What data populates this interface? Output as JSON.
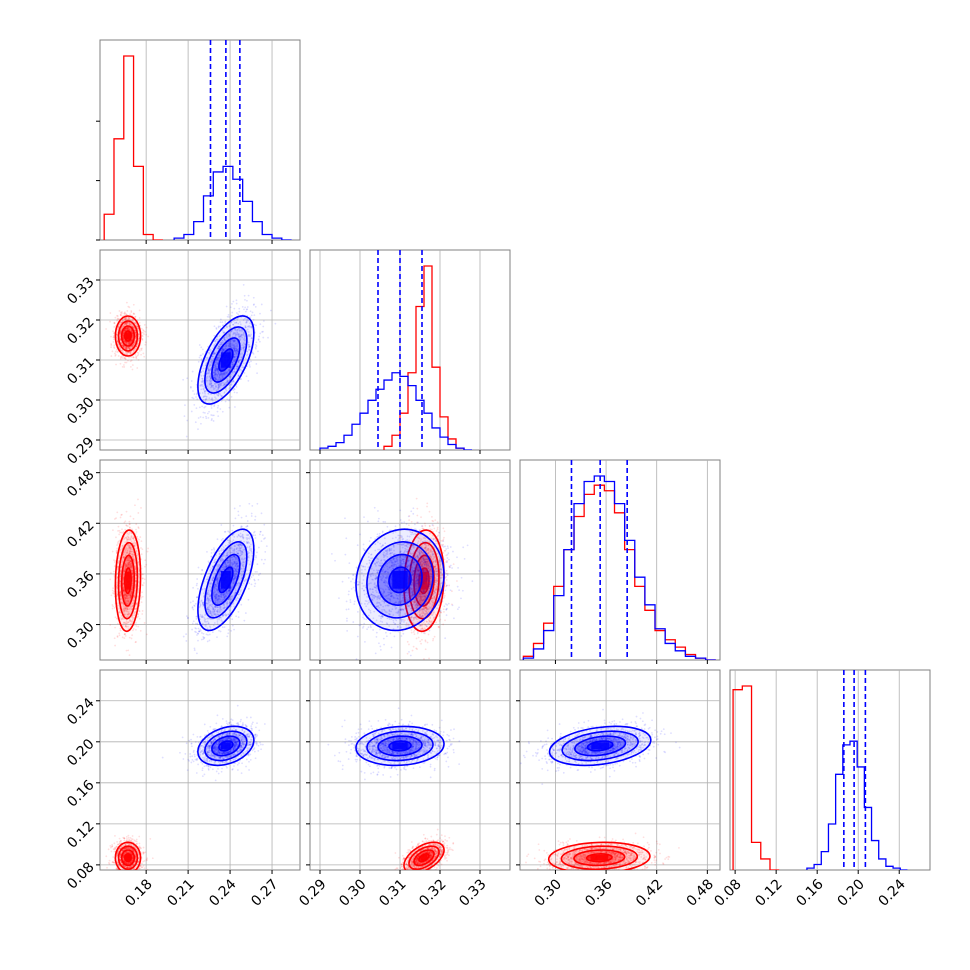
{
  "chart_data": {
    "type": "corner",
    "series_colors": {
      "red": "#ff0000",
      "blue": "#0000ff"
    },
    "grid": true,
    "parameters": [
      {
        "range": [
          0.147,
          0.29
        ],
        "ticks": [
          "0.18",
          "0.21",
          "0.24",
          "0.27"
        ]
      },
      {
        "range": [
          0.2875,
          0.3375
        ],
        "ticks": [
          "0.29",
          "0.30",
          "0.31",
          "0.32",
          "0.33"
        ]
      },
      {
        "range": [
          0.258,
          0.495
        ],
        "ticks": [
          "0.30",
          "0.36",
          "0.42",
          "0.48"
        ]
      },
      {
        "range": [
          0.075,
          0.27
        ],
        "ticks": [
          "0.08",
          "0.12",
          "0.16",
          "0.20",
          "0.24"
        ]
      }
    ],
    "histograms": [
      {
        "param": 0,
        "quantiles_blue": [
          0.226,
          0.237,
          0.247
        ],
        "red": {
          "edges": [
            0.15,
            0.157,
            0.164,
            0.171,
            0.178,
            0.185,
            0.192
          ],
          "counts": [
            14,
            55,
            100,
            40,
            3,
            0
          ]
        },
        "blue": {
          "edges": [
            0.2,
            0.207,
            0.214,
            0.221,
            0.228,
            0.235,
            0.242,
            0.249,
            0.256,
            0.263,
            0.27,
            0.277,
            0.284
          ],
          "counts": [
            1,
            3,
            10,
            24,
            37,
            40,
            33,
            21,
            10,
            3,
            1,
            0
          ]
        }
      },
      {
        "param": 1,
        "quantiles_blue": [
          0.3045,
          0.31,
          0.3155
        ],
        "red": {
          "edges": [
            0.306,
            0.308,
            0.31,
            0.312,
            0.314,
            0.316,
            0.318,
            0.32,
            0.322,
            0.324,
            0.326
          ],
          "counts": [
            2,
            8,
            20,
            42,
            78,
            100,
            45,
            18,
            6,
            1
          ]
        },
        "blue": {
          "edges": [
            0.29,
            0.292,
            0.294,
            0.296,
            0.298,
            0.3,
            0.302,
            0.304,
            0.306,
            0.308,
            0.31,
            0.312,
            0.314,
            0.316,
            0.318,
            0.32,
            0.322,
            0.324,
            0.326,
            0.328
          ],
          "counts": [
            1,
            2,
            4,
            8,
            14,
            20,
            27,
            33,
            38,
            42,
            40,
            35,
            27,
            20,
            12,
            7,
            3,
            1,
            0
          ]
        }
      },
      {
        "param": 2,
        "quantiles_blue": [
          0.319,
          0.353,
          0.385
        ],
        "red": {
          "edges": [
            0.262,
            0.274,
            0.286,
            0.298,
            0.31,
            0.322,
            0.334,
            0.346,
            0.358,
            0.37,
            0.382,
            0.394,
            0.406,
            0.418,
            0.43,
            0.442,
            0.454,
            0.466,
            0.478,
            0.49
          ],
          "counts": [
            2,
            9,
            20,
            40,
            60,
            78,
            90,
            95,
            92,
            80,
            60,
            40,
            27,
            16,
            11,
            7,
            3,
            1,
            0
          ]
        },
        "blue": {
          "edges": [
            0.262,
            0.274,
            0.286,
            0.298,
            0.31,
            0.322,
            0.334,
            0.346,
            0.358,
            0.37,
            0.382,
            0.394,
            0.406,
            0.418,
            0.43,
            0.442,
            0.454,
            0.466,
            0.478,
            0.49
          ],
          "counts": [
            1,
            6,
            16,
            35,
            60,
            85,
            97,
            100,
            97,
            85,
            65,
            45,
            30,
            17,
            9,
            5,
            2,
            1,
            0
          ]
        }
      },
      {
        "param": 3,
        "quantiles_blue": [
          0.186,
          0.196,
          0.207
        ],
        "red": {
          "edges": [
            0.078,
            0.087,
            0.096,
            0.105,
            0.114,
            0.123
          ],
          "counts": [
            98,
            100,
            15,
            6,
            0
          ]
        },
        "blue": {
          "edges": [
            0.15,
            0.157,
            0.164,
            0.171,
            0.178,
            0.185,
            0.192,
            0.199,
            0.206,
            0.213,
            0.22,
            0.227,
            0.234,
            0.241,
            0.248
          ],
          "counts": [
            1,
            3,
            10,
            25,
            52,
            68,
            70,
            56,
            34,
            16,
            6,
            2,
            1,
            0
          ]
        }
      }
    ],
    "scatter_panels": [
      {
        "xparam": 0,
        "yparam": 1,
        "red": {
          "mean": [
            0.167,
            0.316
          ],
          "sd": [
            0.0045,
            0.0025
          ],
          "rho": 0.0
        },
        "blue": {
          "mean": [
            0.237,
            0.31
          ],
          "sd": [
            0.01,
            0.0055
          ],
          "rho": 0.6
        }
      },
      {
        "xparam": 0,
        "yparam": 2,
        "red": {
          "mean": [
            0.167,
            0.352
          ],
          "sd": [
            0.0045,
            0.03
          ],
          "rho": 0.1
        },
        "blue": {
          "mean": [
            0.237,
            0.353
          ],
          "sd": [
            0.01,
            0.03
          ],
          "rho": 0.6
        }
      },
      {
        "xparam": 1,
        "yparam": 2,
        "red": {
          "mean": [
            0.316,
            0.352
          ],
          "sd": [
            0.0025,
            0.03
          ],
          "rho": 0.1
        },
        "blue": {
          "mean": [
            0.31,
            0.353
          ],
          "sd": [
            0.0055,
            0.03
          ],
          "rho": 0.1
        }
      },
      {
        "xparam": 0,
        "yparam": 3,
        "red": {
          "mean": [
            0.167,
            0.087
          ],
          "sd": [
            0.0045,
            0.0075
          ],
          "rho": 0.0
        },
        "blue": {
          "mean": [
            0.237,
            0.196
          ],
          "sd": [
            0.01,
            0.0095
          ],
          "rho": 0.3
        }
      },
      {
        "xparam": 1,
        "yparam": 3,
        "red": {
          "mean": [
            0.316,
            0.087
          ],
          "sd": [
            0.0025,
            0.0075
          ],
          "rho": 0.5
        },
        "blue": {
          "mean": [
            0.31,
            0.196
          ],
          "sd": [
            0.0055,
            0.0095
          ],
          "rho": 0.1
        }
      },
      {
        "xparam": 2,
        "yparam": 3,
        "red": {
          "mean": [
            0.352,
            0.087
          ],
          "sd": [
            0.03,
            0.0075
          ],
          "rho": 0.1
        },
        "blue": {
          "mean": [
            0.353,
            0.196
          ],
          "sd": [
            0.03,
            0.0095
          ],
          "rho": 0.3
        }
      }
    ]
  }
}
